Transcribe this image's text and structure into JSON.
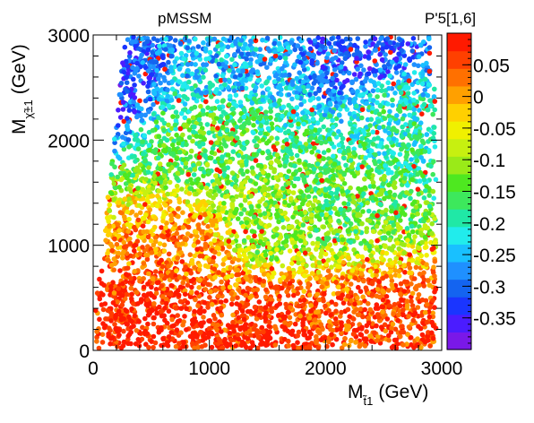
{
  "chart_data": {
    "type": "scatter",
    "title": "pMSSM",
    "color_label": "P'5[1,6]",
    "xlabel": {
      "main": "M",
      "sub": "t̃1",
      "unit": "(GeV)"
    },
    "ylabel": {
      "main": "M",
      "sub": "χ̃±1",
      "unit": "(GeV)"
    },
    "xlim": [
      0,
      3000
    ],
    "ylim": [
      0,
      3000
    ],
    "x_ticks": [
      "0",
      "1000",
      "2000",
      "3000"
    ],
    "y_ticks": [
      "0",
      "1000",
      "2000",
      "3000"
    ],
    "x_tick_values": [
      0,
      1000,
      2000,
      3000
    ],
    "y_tick_values": [
      0,
      1000,
      2000,
      3000
    ],
    "color_range": [
      -0.4,
      0.1
    ],
    "color_ticks": [
      "0.05",
      "0",
      "-0.05",
      "-0.1",
      "-0.15",
      "-0.2",
      "-0.25",
      "-0.3",
      "-0.35"
    ],
    "color_tick_values": [
      0.05,
      0,
      -0.05,
      -0.1,
      -0.15,
      -0.2,
      -0.25,
      -0.3,
      -0.35
    ],
    "palette": [
      "#7a18e8",
      "#4b1cff",
      "#1a35ff",
      "#1464f0",
      "#1f90ff",
      "#19c0ff",
      "#21ecec",
      "#20e8a6",
      "#3de85c",
      "#4ee820",
      "#9aea18",
      "#c7f010",
      "#f0f000",
      "#ffd000",
      "#ffa000",
      "#ff7000",
      "#ff4000",
      "#ff1a00"
    ],
    "region_samples": [
      {
        "x": 650,
        "y": 350,
        "value": 0.09
      },
      {
        "x": 1500,
        "y": 300,
        "value": 0.07
      },
      {
        "x": 2500,
        "y": 200,
        "value": 0.06
      },
      {
        "x": 800,
        "y": 900,
        "value": 0.02
      },
      {
        "x": 1500,
        "y": 1200,
        "value": -0.12
      },
      {
        "x": 2200,
        "y": 1500,
        "value": -0.15
      },
      {
        "x": 1000,
        "y": 2000,
        "value": -0.15
      },
      {
        "x": 2500,
        "y": 2200,
        "value": -0.2
      },
      {
        "x": 1200,
        "y": 2750,
        "value": -0.25
      },
      {
        "x": 2300,
        "y": 2800,
        "value": -0.32
      },
      {
        "x": 150,
        "y": 2600,
        "value": -0.32
      }
    ]
  }
}
